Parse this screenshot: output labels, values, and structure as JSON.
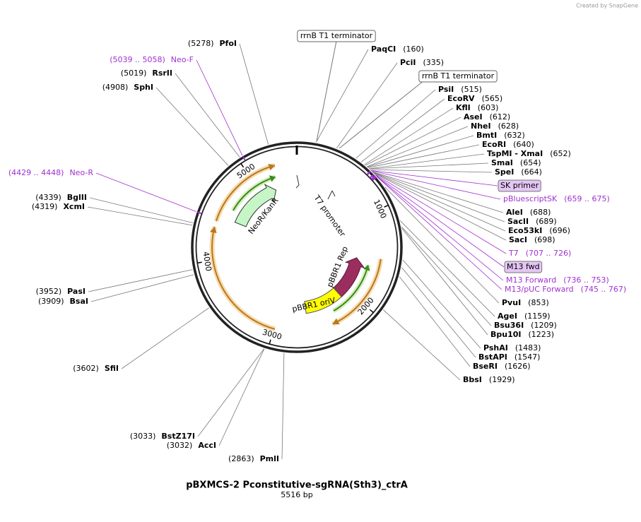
{
  "credit": "Created by SnapGene",
  "title": "pBXMCS-2 Pconstitutive-sgRNA(Sth3)_ctrA",
  "length": "5516 bp",
  "features": [
    {
      "label": "rrnB T1 terminator"
    },
    {
      "label": "rrnB T1 terminator"
    },
    {
      "label": "T7 promoter"
    },
    {
      "label": "pBBR1 Rep"
    },
    {
      "label": "pBBR1 oriV"
    },
    {
      "label": "NeoR/KanR"
    }
  ],
  "sites": [
    {
      "name": "PaqCI",
      "position": "(160)"
    },
    {
      "name": "PciI",
      "position": "(335)"
    },
    {
      "name": "PsiI",
      "position": "(515)"
    },
    {
      "name": "EcoRV",
      "position": "(565)"
    },
    {
      "name": "KflI",
      "position": "(603)"
    },
    {
      "name": "AseI",
      "position": "(612)"
    },
    {
      "name": "NheI",
      "position": "(628)"
    },
    {
      "name": "BmtI",
      "position": "(632)"
    },
    {
      "name": "EcoRI",
      "position": "(640)"
    },
    {
      "name": "TspMI - XmaI",
      "position": "(652)"
    },
    {
      "name": "SmaI",
      "position": "(654)"
    },
    {
      "name": "SpeI",
      "position": "(664)"
    },
    {
      "name": "AleI",
      "position": "(688)"
    },
    {
      "name": "SacII",
      "position": "(689)"
    },
    {
      "name": "Eco53kI",
      "position": "(696)"
    },
    {
      "name": "SacI",
      "position": "(698)"
    },
    {
      "name": "PvuI",
      "position": "(853)"
    },
    {
      "name": "AgeI",
      "position": "(1159)"
    },
    {
      "name": "Bsu36I",
      "position": "(1209)"
    },
    {
      "name": "Bpu10I",
      "position": "(1223)"
    },
    {
      "name": "PshAI",
      "position": "(1483)"
    },
    {
      "name": "BstAPI",
      "position": "(1547)"
    },
    {
      "name": "BseRI",
      "position": "(1626)"
    },
    {
      "name": "BbsI",
      "position": "(1929)"
    },
    {
      "name": "PmlI",
      "position": "(2863)"
    },
    {
      "name": "AccI",
      "position": "(3032)"
    },
    {
      "name": "BstZ17I",
      "position": "(3033)"
    },
    {
      "name": "SfiI",
      "position": "(3602)"
    },
    {
      "name": "BsaI",
      "position": "(3909)"
    },
    {
      "name": "PasI",
      "position": "(3952)"
    },
    {
      "name": "XcmI",
      "position": "(4319)"
    },
    {
      "name": "BglII",
      "position": "(4339)"
    },
    {
      "name": "SphI",
      "position": "(4908)"
    },
    {
      "name": "RsrII",
      "position": "(5019)"
    },
    {
      "name": "PfoI",
      "position": "(5278)"
    }
  ],
  "primers": [
    {
      "name": "Neo-F",
      "range": "(5039 .. 5058)"
    },
    {
      "name": "Neo-R",
      "range": "(4429 .. 4448)"
    },
    {
      "name": "SK primer",
      "boxed": true
    },
    {
      "name": "pBluescriptSK",
      "range": "(659 .. 675)"
    },
    {
      "name": "T7",
      "range": "(707 .. 726)"
    },
    {
      "name": "M13 fwd",
      "boxed": true
    },
    {
      "name": "M13 Forward",
      "range": "(736 .. 753)"
    },
    {
      "name": "M13/pUC Forward",
      "range": "(745 .. 767)"
    }
  ],
  "ring_ticks": [
    1000,
    2000,
    3000,
    4000,
    5000
  ]
}
